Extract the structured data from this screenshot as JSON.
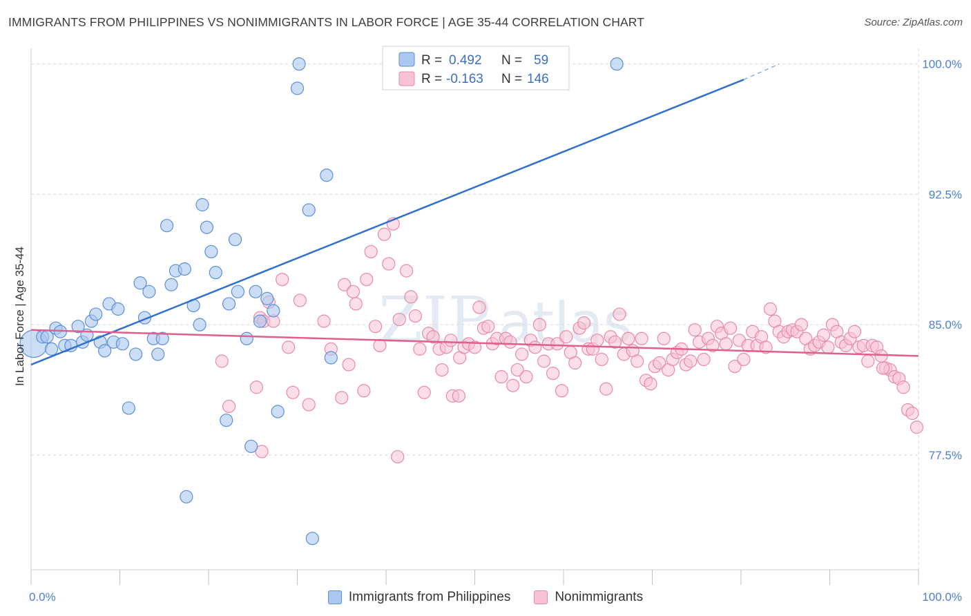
{
  "header": {
    "title": "IMMIGRANTS FROM PHILIPPINES VS NONIMMIGRANTS IN LABOR FORCE | AGE 35-44 CORRELATION CHART",
    "source": "Source: ZipAtlas.com"
  },
  "legend": {
    "rows": [
      {
        "r_label": "R =",
        "r_value": "0.492",
        "n_label": "N =",
        "n_value": "59"
      },
      {
        "r_label": "R =",
        "r_value": "-0.163",
        "n_label": "N =",
        "n_value": "146"
      }
    ]
  },
  "bottom_legend": {
    "items": [
      "Immigrants from Philippines",
      "Nonimmigrants"
    ]
  },
  "watermark": {
    "zip": "ZIP",
    "atlas": "atlas"
  },
  "colors": {
    "blue_fill": "#aac8f0",
    "blue_stroke": "#5b8fd6",
    "blue_line": "#2f6fcf",
    "pink_fill": "#f7c3d3",
    "pink_stroke": "#e889a8",
    "pink_line": "#e05f8e",
    "grid": "#d9d9d9",
    "axis_label": "#4a7fd0"
  },
  "chart_data": {
    "type": "scatter",
    "title": "IMMIGRANTS FROM PHILIPPINES VS NONIMMIGRANTS IN LABOR FORCE | AGE 35-44 CORRELATION CHART",
    "xlabel": "",
    "ylabel": "In Labor Force | Age 35-44",
    "xlim": [
      0,
      100
    ],
    "ylim": [
      70.9,
      100.9
    ],
    "x_tick_labels": [
      "0.0%",
      "100.0%"
    ],
    "y_ticks": [
      77.5,
      85.0,
      92.5,
      100.0
    ],
    "y_tick_labels": [
      "77.5%",
      "85.0%",
      "92.5%",
      "100.0%"
    ],
    "grid": true,
    "legend_position": "top-center",
    "series": [
      {
        "name": "Immigrants from Philippines",
        "r": 0.492,
        "n": 59,
        "trend": {
          "x0": 0,
          "y0": 82.7,
          "x1": 80.3,
          "y1": 99.1,
          "dash_to_x": 84.3,
          "dash_to_y": 100.0
        },
        "points": [
          [
            0.3,
            83.9,
            2.2
          ],
          [
            1.3,
            84.3,
            1
          ],
          [
            1.8,
            84.3,
            1
          ],
          [
            2.3,
            83.6,
            1
          ],
          [
            2.8,
            84.8,
            1
          ],
          [
            3.3,
            84.6,
            1
          ],
          [
            3.8,
            83.8,
            1
          ],
          [
            4.5,
            83.8,
            1
          ],
          [
            5.3,
            84.9,
            1
          ],
          [
            5.8,
            84.0,
            1
          ],
          [
            6.3,
            84.4,
            1
          ],
          [
            6.8,
            85.2,
            1
          ],
          [
            7.3,
            85.6,
            1
          ],
          [
            7.8,
            84.0,
            1
          ],
          [
            8.3,
            83.5,
            1
          ],
          [
            8.8,
            86.2,
            1
          ],
          [
            9.3,
            84.0,
            1
          ],
          [
            9.8,
            85.9,
            1
          ],
          [
            10.3,
            83.9,
            1
          ],
          [
            11.0,
            80.2,
            1
          ],
          [
            11.8,
            83.3,
            1
          ],
          [
            12.3,
            87.4,
            1
          ],
          [
            12.8,
            85.4,
            1
          ],
          [
            13.3,
            86.9,
            1
          ],
          [
            13.8,
            84.2,
            1
          ],
          [
            14.3,
            83.3,
            1
          ],
          [
            14.8,
            84.2,
            1
          ],
          [
            15.3,
            90.7,
            1
          ],
          [
            15.8,
            87.3,
            1
          ],
          [
            16.3,
            88.1,
            1
          ],
          [
            17.3,
            88.2,
            1
          ],
          [
            17.5,
            75.1,
            1
          ],
          [
            18.3,
            86.1,
            1
          ],
          [
            19.0,
            85.0,
            1
          ],
          [
            19.3,
            91.9,
            1
          ],
          [
            19.8,
            90.6,
            1
          ],
          [
            20.3,
            89.2,
            1
          ],
          [
            20.8,
            88.0,
            1
          ],
          [
            22.0,
            79.5,
            1
          ],
          [
            22.3,
            86.2,
            1
          ],
          [
            23.3,
            86.9,
            1
          ],
          [
            23.0,
            89.9,
            1
          ],
          [
            24.3,
            84.2,
            1
          ],
          [
            24.8,
            78.0,
            1
          ],
          [
            25.3,
            86.9,
            1
          ],
          [
            25.8,
            85.2,
            1
          ],
          [
            26.6,
            86.5,
            1
          ],
          [
            27.3,
            85.8,
            1
          ],
          [
            27.8,
            80.0,
            1
          ],
          [
            30.2,
            100.0,
            1
          ],
          [
            30.0,
            98.6,
            1
          ],
          [
            31.3,
            91.6,
            1
          ],
          [
            31.7,
            72.7,
            1
          ],
          [
            33.3,
            93.6,
            1
          ],
          [
            33.8,
            83.1,
            1
          ],
          [
            66.0,
            100.0,
            1
          ]
        ]
      },
      {
        "name": "Nonimmigrants",
        "r": -0.163,
        "n": 146,
        "trend": {
          "x0": 0,
          "y0": 84.7,
          "x1": 100,
          "y1": 83.2
        },
        "points": [
          [
            21.5,
            82.9
          ],
          [
            22.3,
            80.3
          ],
          [
            25.4,
            81.4
          ],
          [
            25.8,
            85.4
          ],
          [
            26.2,
            85.2
          ],
          [
            26.0,
            77.7
          ],
          [
            26.8,
            86.3
          ],
          [
            27.3,
            85.2
          ],
          [
            28.3,
            87.6
          ],
          [
            29.0,
            83.7
          ],
          [
            29.5,
            81.1
          ],
          [
            30.3,
            86.4
          ],
          [
            31.3,
            80.4
          ],
          [
            33.0,
            85.2
          ],
          [
            33.8,
            83.6
          ],
          [
            35.0,
            80.8
          ],
          [
            35.3,
            87.3
          ],
          [
            35.8,
            82.7
          ],
          [
            36.3,
            86.9
          ],
          [
            36.6,
            86.2
          ],
          [
            37.5,
            81.2
          ],
          [
            37.8,
            87.6
          ],
          [
            38.3,
            89.2
          ],
          [
            38.8,
            84.9
          ],
          [
            39.3,
            83.8
          ],
          [
            39.8,
            90.2
          ],
          [
            40.3,
            88.5
          ],
          [
            40.8,
            90.8
          ],
          [
            41.5,
            85.3
          ],
          [
            41.3,
            77.4
          ],
          [
            42.3,
            88.1
          ],
          [
            42.8,
            86.6
          ],
          [
            43.3,
            85.5
          ],
          [
            43.8,
            83.6
          ],
          [
            44.3,
            81.1
          ],
          [
            44.8,
            84.5
          ],
          [
            45.3,
            84.3
          ],
          [
            46.0,
            83.6
          ],
          [
            46.3,
            82.4
          ],
          [
            46.8,
            83.7
          ],
          [
            47.3,
            84.1
          ],
          [
            47.5,
            80.9
          ],
          [
            48.2,
            80.9
          ],
          [
            48.3,
            83.1
          ],
          [
            48.8,
            83.7
          ],
          [
            49.3,
            83.9
          ],
          [
            50.0,
            83.7
          ],
          [
            50.5,
            86.0
          ],
          [
            51.0,
            84.8
          ],
          [
            51.5,
            84.9
          ],
          [
            52.0,
            83.9
          ],
          [
            52.5,
            84.2
          ],
          [
            53.0,
            82.0
          ],
          [
            53.5,
            84.2
          ],
          [
            54.0,
            84.0
          ],
          [
            54.3,
            81.5
          ],
          [
            54.8,
            82.4
          ],
          [
            55.3,
            83.3
          ],
          [
            55.8,
            82.0
          ],
          [
            56.3,
            84.1
          ],
          [
            56.8,
            83.7
          ],
          [
            57.3,
            85.0
          ],
          [
            57.8,
            82.9
          ],
          [
            58.3,
            83.9
          ],
          [
            58.8,
            82.2
          ],
          [
            59.3,
            83.9
          ],
          [
            59.8,
            81.2
          ],
          [
            60.3,
            84.3
          ],
          [
            60.8,
            83.4
          ],
          [
            61.3,
            82.8
          ],
          [
            61.8,
            84.8
          ],
          [
            62.3,
            85.1
          ],
          [
            62.8,
            83.6
          ],
          [
            63.3,
            83.6
          ],
          [
            63.8,
            84.1
          ],
          [
            64.3,
            83.0
          ],
          [
            64.8,
            81.3
          ],
          [
            65.3,
            84.3
          ],
          [
            65.8,
            84.0
          ],
          [
            66.3,
            85.6
          ],
          [
            66.8,
            83.3
          ],
          [
            67.3,
            84.2
          ],
          [
            67.8,
            83.5
          ],
          [
            68.3,
            82.9
          ],
          [
            68.8,
            84.2
          ],
          [
            69.3,
            81.8
          ],
          [
            69.8,
            81.6
          ],
          [
            70.3,
            82.6
          ],
          [
            70.8,
            82.8
          ],
          [
            71.3,
            84.2
          ],
          [
            71.8,
            82.4
          ],
          [
            72.3,
            83.0
          ],
          [
            72.8,
            83.4
          ],
          [
            73.3,
            83.6
          ],
          [
            73.8,
            82.7
          ],
          [
            74.3,
            82.9
          ],
          [
            74.8,
            84.7
          ],
          [
            75.3,
            84.0
          ],
          [
            75.8,
            83.0
          ],
          [
            76.3,
            84.2
          ],
          [
            76.8,
            83.8
          ],
          [
            77.3,
            84.9
          ],
          [
            77.8,
            84.5
          ],
          [
            78.3,
            83.9
          ],
          [
            78.8,
            84.8
          ],
          [
            79.3,
            82.6
          ],
          [
            79.8,
            84.1
          ],
          [
            80.3,
            83.0
          ],
          [
            80.8,
            83.8
          ],
          [
            81.3,
            84.6
          ],
          [
            81.8,
            83.8
          ],
          [
            82.3,
            84.3
          ],
          [
            82.8,
            83.7
          ],
          [
            83.3,
            85.9
          ],
          [
            83.8,
            85.2
          ],
          [
            84.3,
            84.6
          ],
          [
            84.8,
            84.3
          ],
          [
            85.3,
            84.6
          ],
          [
            85.8,
            84.7
          ],
          [
            86.3,
            84.6
          ],
          [
            86.8,
            85.0
          ],
          [
            87.3,
            84.2
          ],
          [
            87.8,
            83.6
          ],
          [
            88.3,
            83.8
          ],
          [
            88.8,
            84.0
          ],
          [
            89.3,
            84.4
          ],
          [
            89.8,
            83.7
          ],
          [
            90.3,
            85.0
          ],
          [
            90.8,
            84.6
          ],
          [
            91.3,
            84.0
          ],
          [
            91.8,
            83.8
          ],
          [
            92.3,
            84.2
          ],
          [
            92.8,
            84.6
          ],
          [
            93.3,
            83.7
          ],
          [
            93.8,
            83.8
          ],
          [
            94.3,
            82.9
          ],
          [
            94.8,
            83.8
          ],
          [
            95.3,
            83.7
          ],
          [
            95.8,
            83.2
          ],
          [
            96.3,
            82.5
          ],
          [
            96.8,
            82.4
          ],
          [
            97.3,
            82.0
          ],
          [
            97.8,
            81.9
          ],
          [
            98.3,
            81.4
          ],
          [
            98.8,
            80.1
          ],
          [
            99.3,
            79.9
          ],
          [
            99.8,
            79.1
          ],
          [
            96.0,
            82.5
          ]
        ]
      }
    ]
  }
}
